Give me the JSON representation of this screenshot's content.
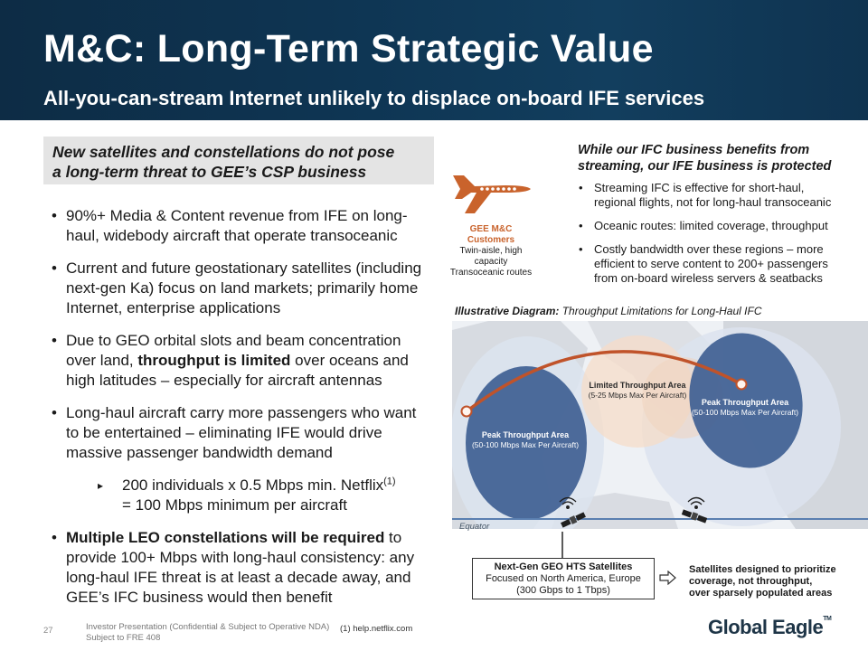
{
  "header": {
    "title": "M&C: Long-Term Strategic Value",
    "subtitle": "All-you-can-stream Internet unlikely to displace on-board IFE services"
  },
  "left": {
    "box_line1": "New satellites and constellations do not pose",
    "box_line2": "a long-term threat to GEE’s CSP business",
    "b1": "90%+ Media & Content revenue from IFE on long-haul, widebody aircraft that operate transoceanic",
    "b2": "Current and future geostationary satellites (including next-gen Ka) focus on land markets; primarily home Internet, enterprise applications",
    "b3_pre": "Due to GEO orbital slots and beam concentration over land, ",
    "b3_bold": "throughput is limited",
    "b3_post": " over oceans and high latitudes – especially for aircraft antennas",
    "b4": "Long-haul aircraft carry more passengers who want to be entertained – eliminating IFE would drive massive passenger bandwidth demand",
    "sub_pre": "200 individuals x 0.5 Mbps min. Netflix",
    "sub_sup": "(1)",
    "sub_post": "= 100 Mbps minimum per aircraft",
    "b5_bold": "Multiple LEO constellations will be required",
    "b5_post": " to provide 100+ Mbps with long-haul consistency: any long-haul IFE threat is at least a decade away, and GEE’s IFC business would then benefit"
  },
  "plane_caption": {
    "title": "GEE M&C Customers",
    "line1": "Twin-aisle, high capacity",
    "line2": "Transoceanic routes"
  },
  "right": {
    "heading_line1": "While our IFC business benefits from",
    "heading_line2": "streaming, our IFE business is protected",
    "items": [
      "Streaming IFC is effective for short-haul, regional flights, not for long-haul transoceanic",
      "Oceanic routes: limited coverage, throughput",
      "Costly bandwidth over these regions – more efficient to serve content to 200+ passengers from on-board wireless servers & seatbacks"
    ]
  },
  "diagram": {
    "title_bold": "Illustrative Diagram:",
    "title_rest": " Throughput Limitations for Long-Haul IFC",
    "peak_left_title": "Peak Throughput Area",
    "peak_left_sub": "(50-100 Mbps Max Per Aircraft)",
    "limited_title": "Limited Throughput Area",
    "limited_sub": "(5-25 Mbps Max Per Aircraft)",
    "peak_right_title": "Peak Throughput Area",
    "peak_right_sub": "(50-100 Mbps Max Per Aircraft)",
    "equator": "Equator",
    "sat_box_title": "Next-Gen GEO HTS Satellites",
    "sat_box_line1": "Focused on North America, Europe",
    "sat_box_line2": "(300 Gbps to 1 Tbps)",
    "prioritize_line1": "Satellites designed to prioritize",
    "prioritize_line2": "coverage, not throughput,",
    "prioritize_line3": "over sparsely populated areas"
  },
  "footer": {
    "page": "27",
    "line1": "Investor Presentation (Confidential & Subject to Operative NDA)",
    "line2": "Subject to FRE 408",
    "footnote": "(1)    help.netflix.com",
    "logo": "Global Eagle",
    "logo_tm": "TM"
  },
  "colors": {
    "header_bg": "#0e3553",
    "accent_orange": "#c9632c",
    "beam_blue": "#3f5f93"
  }
}
